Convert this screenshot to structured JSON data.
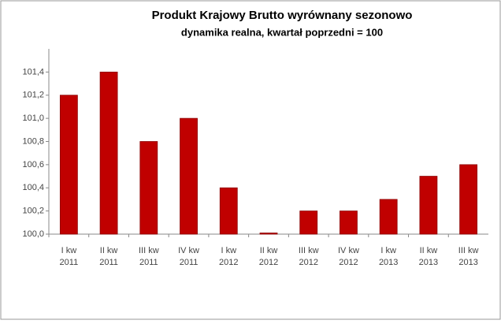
{
  "chart_data": {
    "type": "bar",
    "title": "Produkt Krajowy Brutto wyrównany sezonowo",
    "subtitle": "dynamika realna, kwartał poprzedni = 100",
    "categories": [
      [
        "I kw",
        "2011"
      ],
      [
        "II kw",
        "2011"
      ],
      [
        "III kw",
        "2011"
      ],
      [
        "IV kw",
        "2011"
      ],
      [
        "I kw",
        "2012"
      ],
      [
        "II kw",
        "2012"
      ],
      [
        "III kw",
        "2012"
      ],
      [
        "IV kw",
        "2012"
      ],
      [
        "I kw",
        "2013"
      ],
      [
        "II kw",
        "2013"
      ],
      [
        "III kw",
        "2013"
      ]
    ],
    "values": [
      101.2,
      101.4,
      100.8,
      101.0,
      100.4,
      100.01,
      100.2,
      100.2,
      100.3,
      100.5,
      100.6
    ],
    "color": "#c00000",
    "ylim": [
      100,
      101.6
    ],
    "yticks": [
      {
        "value": 100,
        "label": "100,0"
      },
      {
        "value": 100.2,
        "label": "100,2"
      },
      {
        "value": 100.4,
        "label": "100,4"
      },
      {
        "value": 100.6,
        "label": "100,6"
      },
      {
        "value": 100.8,
        "label": "100,8"
      },
      {
        "value": 101,
        "label": "101,0"
      },
      {
        "value": 101.2,
        "label": "101,2"
      },
      {
        "value": 101.4,
        "label": "101,4"
      }
    ],
    "grid": false
  }
}
